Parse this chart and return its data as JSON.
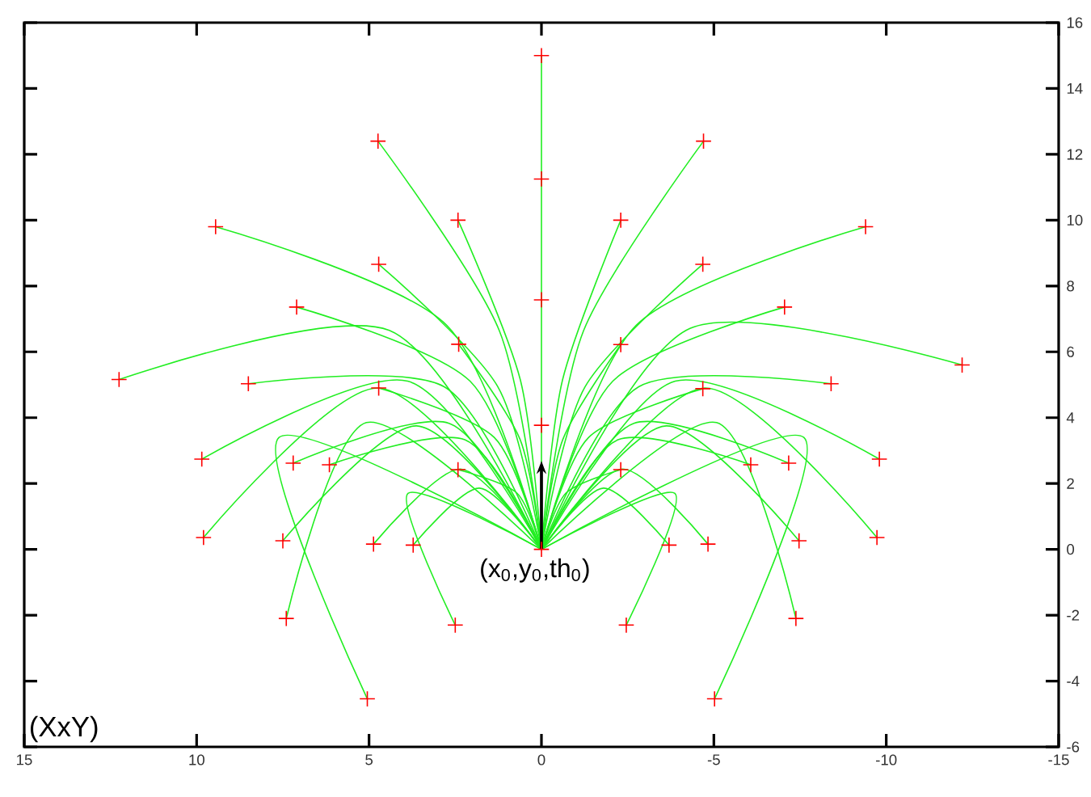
{
  "chart_data": {
    "type": "line",
    "xlim": [
      15,
      -15
    ],
    "ylim": [
      -6,
      16
    ],
    "xticks": [
      15,
      10,
      5,
      0,
      -5,
      -10,
      -15
    ],
    "yticks": [
      -6,
      -4,
      -2,
      0,
      2,
      4,
      6,
      8,
      10,
      12,
      14,
      16
    ],
    "annotations": [
      "(XxY)",
      {
        "text": "(x$_{0}$,y$_{0}$,th$_{0}$)",
        "x": 0,
        "y": 0
      }
    ],
    "series": [
      {
        "color": "#22ee22",
        "x": [
          0,
          0
        ],
        "values": [
          0,
          15
        ]
      },
      {
        "type": "line",
        "color": "#22ee22",
        "x": [
          0,
          1.22,
          4.74
        ],
        "values": [
          0,
          6.64,
          12.4
        ]
      },
      {
        "type": "line",
        "color": "#22ee22",
        "x": [
          0,
          0.61,
          2.42
        ],
        "values": [
          0,
          5.14,
          10
        ]
      },
      {
        "type": "line",
        "color": "#22ee22",
        "x": [
          0,
          2.75,
          9.45
        ],
        "values": [
          0,
          6.81,
          9.8
        ]
      },
      {
        "type": "line",
        "color": "#22ee22",
        "x": [
          0,
          1.26,
          4.72
        ],
        "values": [
          0,
          4.93,
          8.66
        ]
      },
      {
        "type": "line",
        "color": "#22ee22",
        "x": [
          0,
          2.07,
          7.1
        ],
        "values": [
          0,
          5.11,
          7.36
        ]
      },
      {
        "type": "line",
        "color": "#22ee22",
        "x": [
          0,
          0.62,
          2.4
        ],
        "values": [
          0,
          3.34,
          6.23
        ]
      },
      {
        "type": "line",
        "color": "#22ee22",
        "x": [
          0,
          4.41,
          12.25
        ],
        "values": [
          0,
          6.65,
          5.16
        ]
      },
      {
        "type": "line",
        "color": "#22ee22",
        "x": [
          0,
          2.82,
          8.5
        ],
        "values": [
          0,
          4.94,
          5.03
        ]
      },
      {
        "type": "line",
        "color": "#22ee22",
        "x": [
          0,
          1.37,
          4.72
        ],
        "values": [
          0,
          3.4,
          4.9
        ]
      },
      {
        "type": "line",
        "color": "#22ee22",
        "x": [
          0,
          3.88,
          9.85
        ],
        "values": [
          0,
          5.11,
          2.74
        ]
      },
      {
        "type": "line",
        "color": "#22ee22",
        "x": [
          0,
          2.68,
          7.2
        ],
        "values": [
          0,
          3.83,
          2.62
        ]
      },
      {
        "type": "line",
        "color": "#22ee22",
        "x": [
          0,
          2.22,
          6.15
        ],
        "values": [
          0,
          3.33,
          2.57
        ]
      },
      {
        "type": "line",
        "color": "#22ee22",
        "x": [
          0,
          0.71,
          2.42
        ],
        "values": [
          0,
          1.71,
          2.42
        ]
      },
      {
        "type": "line",
        "color": "#22ee22",
        "x": [
          0,
          4.73,
          9.8
        ],
        "values": [
          0,
          4.9,
          0.36
        ]
      },
      {
        "type": "line",
        "color": "#22ee22",
        "x": [
          0,
          3.62,
          7.5
        ],
        "values": [
          0,
          3.75,
          0.26
        ]
      },
      {
        "type": "line",
        "color": "#22ee22",
        "x": [
          0,
          2.35,
          4.87
        ],
        "values": [
          0,
          2.44,
          0.16
        ]
      },
      {
        "type": "line",
        "color": "#22ee22",
        "x": [
          0,
          1.8,
          3.72
        ],
        "values": [
          0,
          1.86,
          0.13
        ]
      },
      {
        "type": "line",
        "color": "#22ee22",
        "x": [
          0,
          5.08,
          7.4
        ],
        "values": [
          0,
          3.85,
          -2.1
        ]
      },
      {
        "type": "line",
        "color": "#22ee22",
        "x": [
          0,
          3.87,
          2.5
        ],
        "values": [
          0,
          1.7,
          -2.3
        ]
      },
      {
        "type": "line",
        "color": "#22ee22",
        "x": [
          0,
          7.61,
          5.05
        ],
        "values": [
          0,
          3.4,
          -4.54
        ]
      },
      {
        "type": "line",
        "color": "#22ee22",
        "x": [
          0,
          -1.22,
          -4.7
        ],
        "values": [
          0,
          6.64,
          12.4
        ]
      },
      {
        "type": "line",
        "color": "#22ee22",
        "x": [
          0,
          -0.61,
          -2.3
        ],
        "values": [
          0,
          5.14,
          10
        ]
      },
      {
        "type": "line",
        "color": "#22ee22",
        "x": [
          0,
          -2.75,
          -9.4
        ],
        "values": [
          0,
          6.81,
          9.8
        ]
      },
      {
        "type": "line",
        "color": "#22ee22",
        "x": [
          0,
          -1.26,
          -4.68
        ],
        "values": [
          0,
          4.93,
          8.66
        ]
      },
      {
        "type": "line",
        "color": "#22ee22",
        "x": [
          0,
          -2.07,
          -7.05
        ],
        "values": [
          0,
          5.11,
          7.36
        ]
      },
      {
        "type": "line",
        "color": "#22ee22",
        "x": [
          0,
          -0.62,
          -2.3
        ],
        "values": [
          0,
          3.34,
          6.22
        ]
      },
      {
        "type": "line",
        "color": "#22ee22",
        "x": [
          0,
          -4.31,
          -12.2
        ],
        "values": [
          0,
          6.71,
          5.6
        ]
      },
      {
        "type": "line",
        "color": "#22ee22",
        "x": [
          0,
          -2.82,
          -8.4
        ],
        "values": [
          0,
          4.94,
          5.03
        ]
      },
      {
        "type": "line",
        "color": "#22ee22",
        "x": [
          0,
          -1.37,
          -4.68
        ],
        "values": [
          0,
          3.4,
          4.88
        ]
      },
      {
        "type": "line",
        "color": "#22ee22",
        "x": [
          0,
          -3.88,
          -9.8
        ],
        "values": [
          0,
          5.11,
          2.74
        ]
      },
      {
        "type": "line",
        "color": "#22ee22",
        "x": [
          0,
          -2.68,
          -7.17
        ],
        "values": [
          0,
          3.83,
          2.62
        ]
      },
      {
        "type": "line",
        "color": "#22ee22",
        "x": [
          0,
          -2.22,
          -6.07
        ],
        "values": [
          0,
          3.33,
          2.57
        ]
      },
      {
        "type": "line",
        "color": "#22ee22",
        "x": [
          0,
          -0.71,
          -2.3
        ],
        "values": [
          0,
          1.71,
          2.42
        ]
      },
      {
        "type": "line",
        "color": "#22ee22",
        "x": [
          0,
          -4.73,
          -9.73
        ],
        "values": [
          0,
          4.9,
          0.36
        ]
      },
      {
        "type": "line",
        "color": "#22ee22",
        "x": [
          0,
          -3.62,
          -7.47
        ],
        "values": [
          0,
          3.75,
          0.26
        ]
      },
      {
        "type": "line",
        "color": "#22ee22",
        "x": [
          0,
          -2.35,
          -4.83
        ],
        "values": [
          0,
          2.44,
          0.16
        ]
      },
      {
        "type": "line",
        "color": "#22ee22",
        "x": [
          0,
          -1.8,
          -3.7
        ],
        "values": [
          0,
          1.86,
          0.13
        ]
      },
      {
        "type": "line",
        "color": "#22ee22",
        "x": [
          0,
          -5.08,
          -7.38
        ],
        "values": [
          0,
          3.85,
          -2.1
        ]
      },
      {
        "type": "line",
        "color": "#22ee22",
        "x": [
          0,
          -3.87,
          -2.46
        ],
        "values": [
          0,
          1.7,
          -2.3
        ]
      },
      {
        "type": "line",
        "color": "#22ee22",
        "x": [
          0,
          -7.61,
          -5.02
        ],
        "values": [
          0,
          3.4,
          -4.54
        ]
      },
      {
        "type": "scatter",
        "color": "#ff0000",
        "marker": "cross",
        "x": [
          0,
          0,
          0,
          0,
          0,
          4.74,
          2.42,
          9.45,
          4.72,
          7.1,
          2.4,
          12.25,
          8.5,
          4.72,
          9.85,
          7.2,
          6.15,
          2.42,
          9.8,
          7.5,
          4.87,
          3.72,
          7.4,
          2.5,
          5.05,
          -4.7,
          -2.3,
          -9.4,
          -4.68,
          -7.05,
          -2.3,
          -12.2,
          -8.4,
          -4.68,
          -9.8,
          -7.17,
          -6.07,
          -2.3,
          -9.73,
          -7.47,
          -4.83,
          -3.7,
          -7.38,
          -2.46,
          -5.02
        ],
        "values": [
          15,
          11.25,
          7.58,
          3.77,
          0,
          12.4,
          10,
          9.8,
          8.66,
          7.36,
          6.23,
          5.16,
          5.03,
          4.9,
          2.74,
          2.62,
          2.57,
          2.42,
          0.36,
          0.26,
          0.16,
          0.13,
          -2.1,
          -2.3,
          -4.54,
          12.4,
          10,
          9.8,
          8.66,
          7.36,
          6.22,
          5.6,
          5.03,
          4.88,
          2.74,
          2.62,
          2.57,
          2.42,
          0.36,
          0.26,
          0.16,
          0.13,
          -2.1,
          -2.3,
          -4.54
        ]
      }
    ]
  }
}
